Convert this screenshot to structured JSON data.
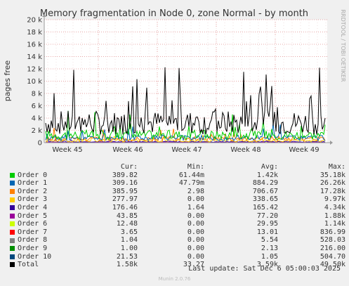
{
  "chart_data": {
    "type": "line",
    "title": "Memory fragmentation in Node 0, zone Normal - by month",
    "ylabel": "pages free",
    "side_label": "RRDTOOL / TOBI OETIKER",
    "ylim": [
      0,
      20000
    ],
    "yticks": [
      0,
      2000,
      4000,
      6000,
      8000,
      10000,
      12000,
      14000,
      16000,
      18000,
      20000
    ],
    "ytick_labels": [
      "0",
      "2 k",
      "4 k",
      "6 k",
      "8 k",
      "10 k",
      "12 k",
      "14 k",
      "16 k",
      "18 k",
      "20 k"
    ],
    "xticks": [
      "Week 45",
      "Week 46",
      "Week 47",
      "Week 48",
      "Week 49"
    ],
    "grid": true,
    "series": [
      {
        "name": "Order 0",
        "color": "#00cc00",
        "cur": "389.82",
        "min": "61.44m",
        "avg": "1.42k",
        "max": "35.18k"
      },
      {
        "name": "Order 1",
        "color": "#0066b3",
        "cur": "309.16",
        "min": "47.79m",
        "avg": "884.29",
        "max": "26.26k"
      },
      {
        "name": "Order 2",
        "color": "#ff8000",
        "cur": "385.95",
        "min": "2.98",
        "avg": "706.67",
        "max": "17.28k"
      },
      {
        "name": "Order 3",
        "color": "#ffcc00",
        "cur": "277.97",
        "min": "0.00",
        "avg": "338.65",
        "max": "9.97k"
      },
      {
        "name": "Order 4",
        "color": "#330099",
        "cur": "176.46",
        "min": "1.64",
        "avg": "165.42",
        "max": "4.34k"
      },
      {
        "name": "Order 5",
        "color": "#990099",
        "cur": "43.85",
        "min": "0.00",
        "avg": "77.20",
        "max": "1.88k"
      },
      {
        "name": "Order 6",
        "color": "#ccff00",
        "cur": "12.48",
        "min": "0.00",
        "avg": "29.95",
        "max": "1.14k"
      },
      {
        "name": "Order 7",
        "color": "#ff0000",
        "cur": "3.65",
        "min": "0.00",
        "avg": "13.01",
        "max": "836.99"
      },
      {
        "name": "Order 8",
        "color": "#808080",
        "cur": "1.04",
        "min": "0.00",
        "avg": "5.54",
        "max": "528.03"
      },
      {
        "name": "Order 9",
        "color": "#008f00",
        "cur": "1.00",
        "min": "0.00",
        "avg": "2.13",
        "max": "216.00"
      },
      {
        "name": "Order 10",
        "color": "#00487d",
        "cur": "21.53",
        "min": "0.00",
        "avg": "1.05",
        "max": "504.70"
      },
      {
        "name": "Total",
        "color": "#000000",
        "cur": "1.58k",
        "min": "33.27",
        "avg": "3.59k",
        "max": "49.50k"
      }
    ]
  },
  "legend_headers": {
    "cur": "Cur:",
    "min": "Min:",
    "avg": "Avg:",
    "max": "Max:"
  },
  "last_update": "Last update: Sat Dec  6 05:00:03 2025",
  "footer": "Munin 2.0.76"
}
